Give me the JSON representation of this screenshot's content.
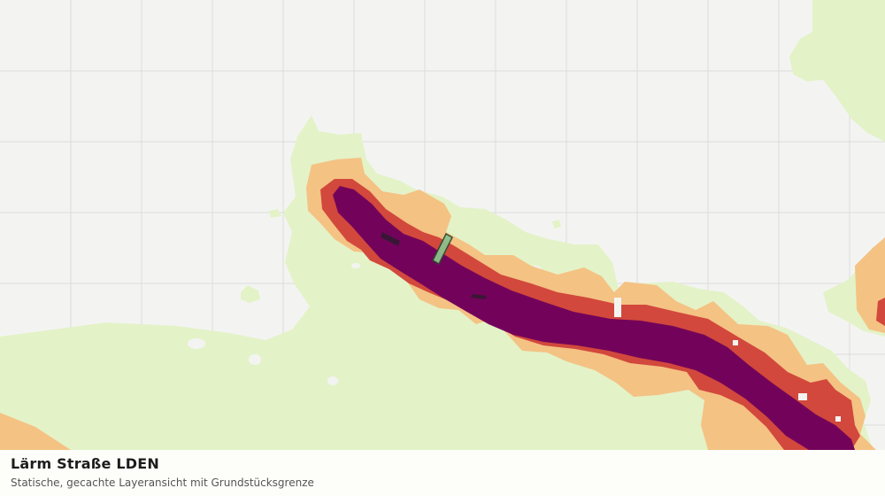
{
  "map": {
    "title": "Lärm Straße LDEN",
    "subtitle": "Statische, gecachte Layeransicht mit Grundstücksgrenze",
    "colors": {
      "background": "#f3f4f2",
      "grid": "#dcdcdc",
      "land": "#e4f2c8",
      "noise_low": "#f4c283",
      "noise_mid": "#d2483c",
      "noise_high": "#73035a",
      "parcel": "#8cc08c"
    },
    "noise_classes": [
      "noise-low",
      "noise-mid",
      "noise-high"
    ]
  }
}
